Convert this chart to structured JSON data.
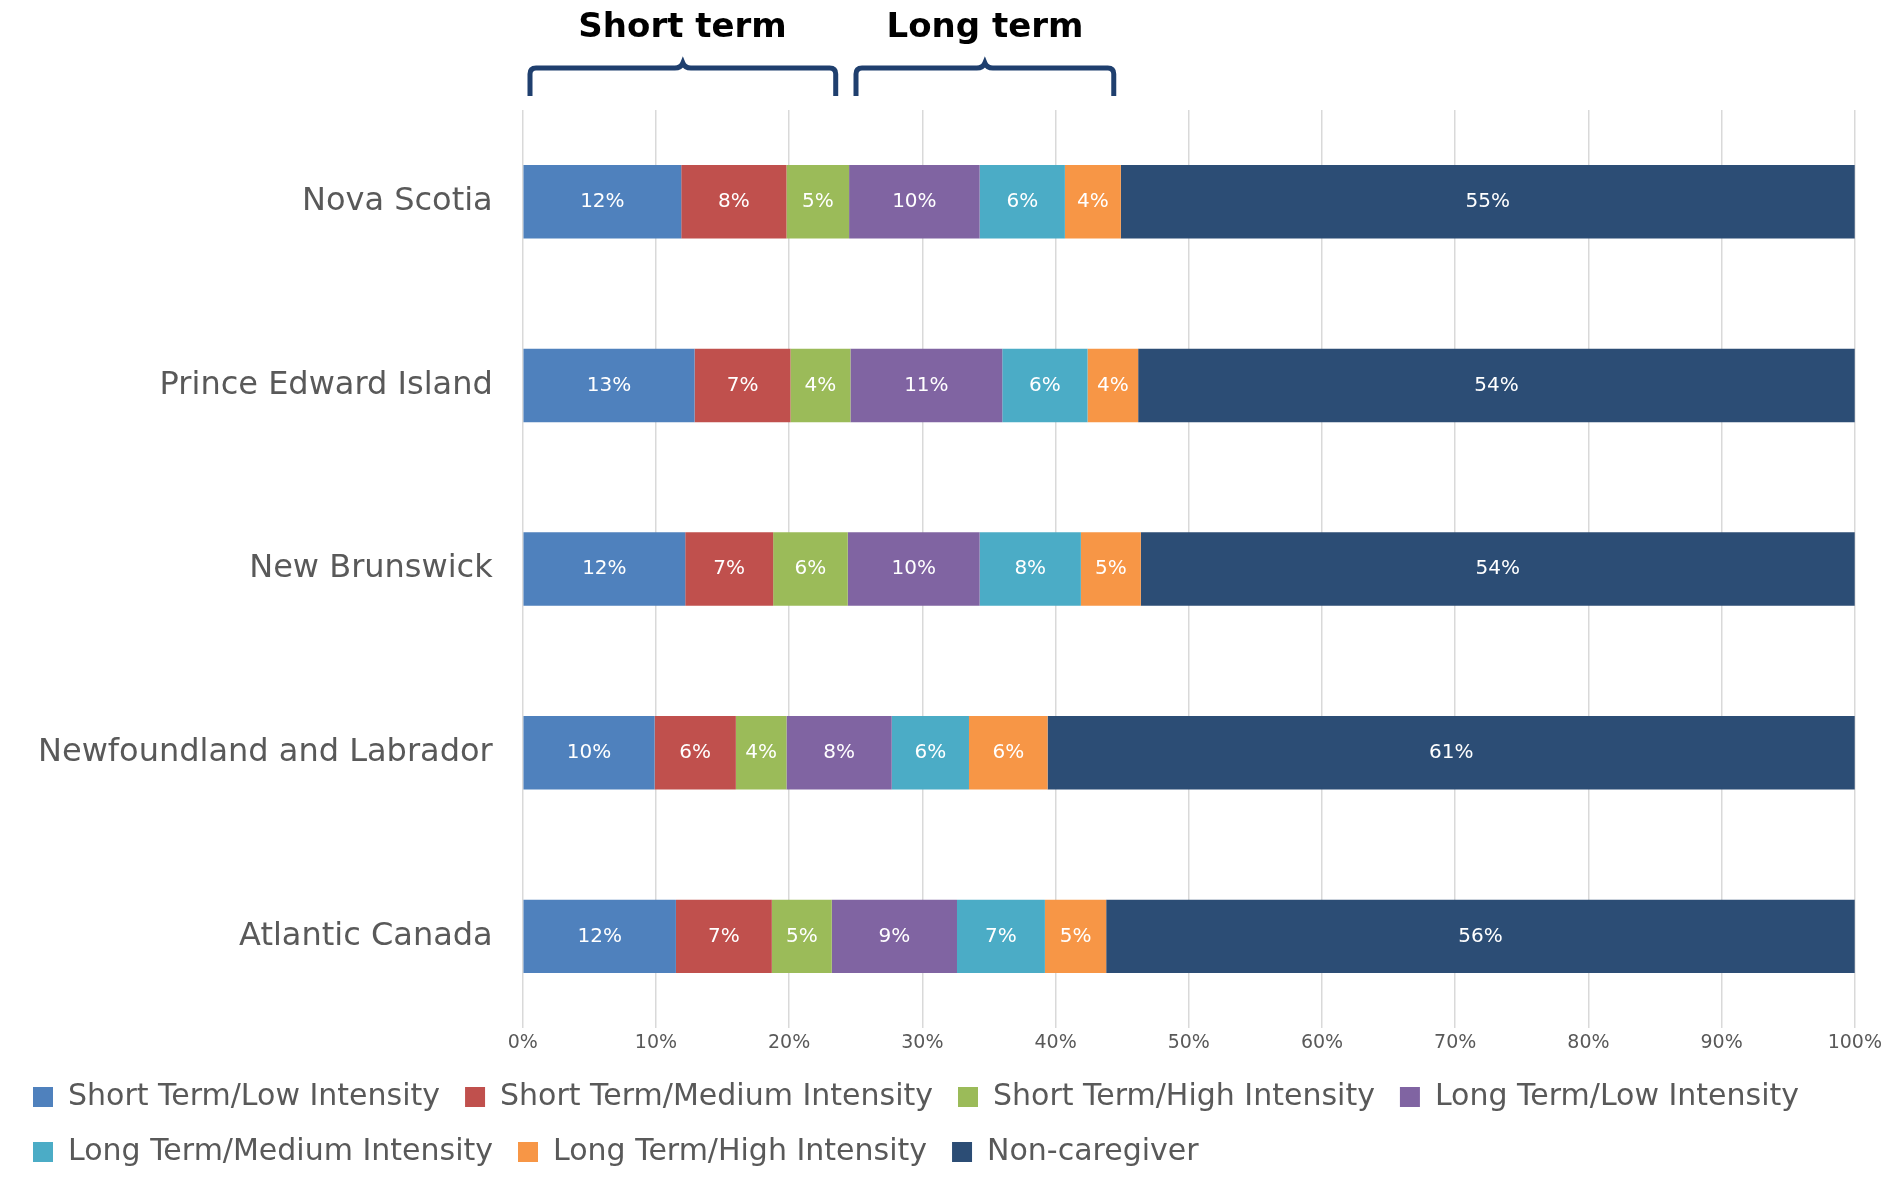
{
  "chart_data": {
    "type": "bar",
    "orientation": "horizontal",
    "stacked": true,
    "categories": [
      "Nova Scotia",
      "Prince Edward Island",
      "New Brunswick",
      "Newfoundland and Labrador",
      "Atlantic Canada"
    ],
    "series": [
      {
        "name": "Short Term/Low Intensity",
        "color": "#4f81bd",
        "values": [
          11.9,
          12.9,
          12.2,
          9.9,
          11.5
        ],
        "value_labels": [
          "12%",
          "13%",
          "12%",
          "10%",
          "12%"
        ]
      },
      {
        "name": "Short Term/Medium Intensity",
        "color": "#c0504d",
        "values": [
          7.9,
          7.2,
          6.6,
          6.1,
          7.2
        ],
        "value_labels": [
          "8%",
          "7%",
          "7%",
          "6%",
          "7%"
        ]
      },
      {
        "name": "Short Term/High Intensity",
        "color": "#9bbb59",
        "values": [
          4.7,
          4.5,
          5.6,
          3.8,
          4.5
        ],
        "value_labels": [
          "5%",
          "4%",
          "6%",
          "4%",
          "5%"
        ]
      },
      {
        "name": "Long Term/Low Intensity",
        "color": "#8064a2",
        "values": [
          9.8,
          11.4,
          9.9,
          7.9,
          9.4
        ],
        "value_labels": [
          "10%",
          "11%",
          "10%",
          "8%",
          "9%"
        ]
      },
      {
        "name": "Long Term/Medium Intensity",
        "color": "#4bacc6",
        "values": [
          6.4,
          6.4,
          7.6,
          5.8,
          6.6
        ],
        "value_labels": [
          "6%",
          "6%",
          "8%",
          "6%",
          "7%"
        ]
      },
      {
        "name": "Long Term/High Intensity",
        "color": "#f79646",
        "values": [
          4.2,
          3.8,
          4.5,
          5.9,
          4.6
        ],
        "value_labels": [
          "4%",
          "4%",
          "5%",
          "6%",
          "5%"
        ]
      },
      {
        "name": "Non-caregiver",
        "color": "#2c4d75",
        "values": [
          55.1,
          53.8,
          53.6,
          60.6,
          56.2
        ],
        "value_labels": [
          "55%",
          "54%",
          "54%",
          "61%",
          "56%"
        ]
      }
    ],
    "xlim": [
      0,
      100
    ],
    "xticks": [
      {
        "value": 0,
        "label": "0%"
      },
      {
        "value": 10,
        "label": "10%"
      },
      {
        "value": 20,
        "label": "20%"
      },
      {
        "value": 30,
        "label": "30%"
      },
      {
        "value": 40,
        "label": "40%"
      },
      {
        "value": 50,
        "label": "50%"
      },
      {
        "value": 60,
        "label": "60%"
      },
      {
        "value": 70,
        "label": "70%"
      },
      {
        "value": 80,
        "label": "80%"
      },
      {
        "value": 90,
        "label": "90%"
      },
      {
        "value": 100,
        "label": "100%"
      }
    ],
    "grid": "x",
    "legend": "bottom",
    "annotations": [
      "Short term",
      "Long term"
    ]
  }
}
